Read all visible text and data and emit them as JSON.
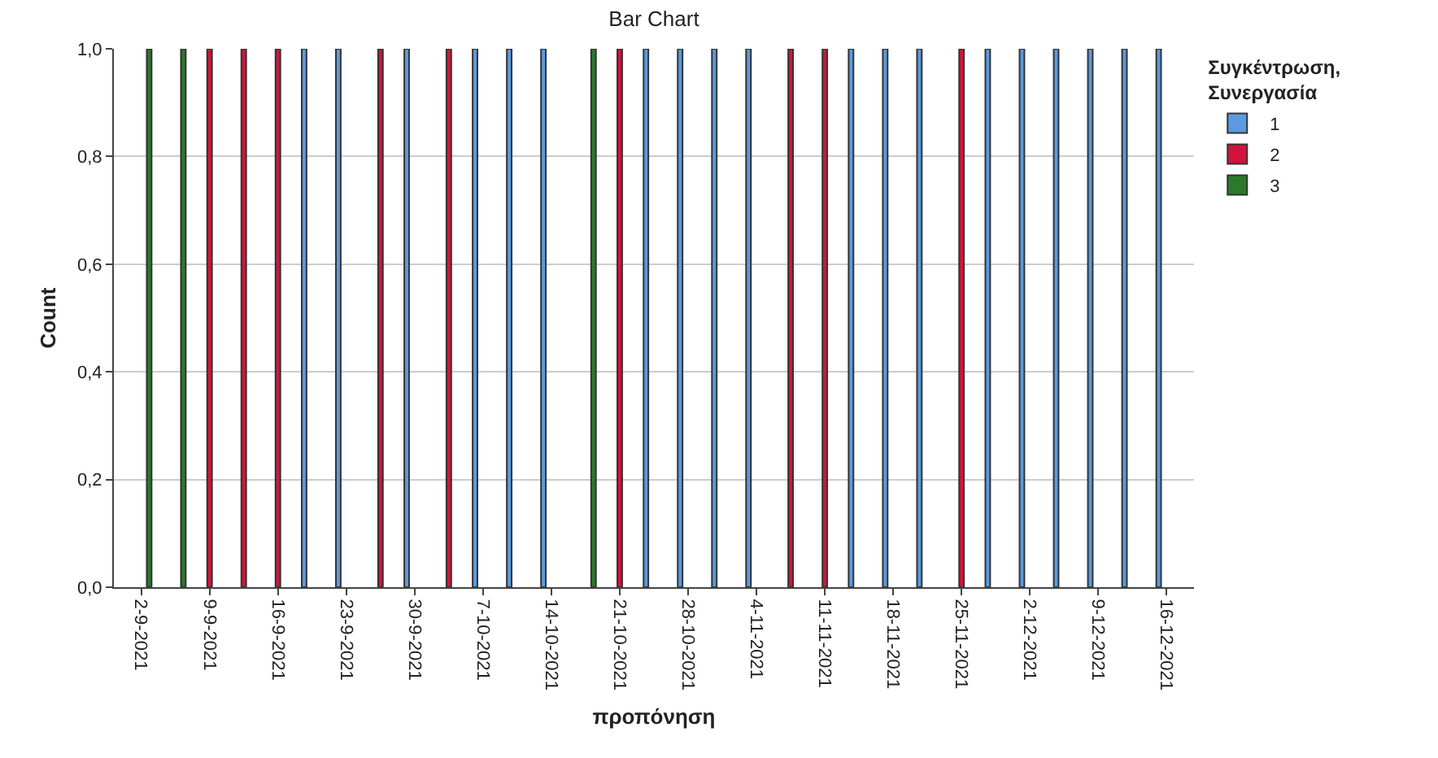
{
  "chart_data": {
    "type": "bar",
    "title": "Bar Chart",
    "xlabel": "προπόνηση",
    "ylabel": "Count",
    "legend_title": "Συγκέντρωση, Συνεργασία",
    "categories": [
      "2-9-2021",
      null,
      "9-9-2021",
      null,
      "16-9-2021",
      null,
      "23-9-2021",
      null,
      "30-9-2021",
      null,
      "7-10-2021",
      null,
      "14-10-2021",
      null,
      "21-10-2021",
      null,
      "28-10-2021",
      null,
      "4-11-2021",
      null,
      "11-11-2021",
      null,
      "18-11-2021",
      null,
      "25-11-2021",
      null,
      "2-12-2021",
      null,
      "9-12-2021",
      null,
      "16-12-2021"
    ],
    "series": [
      {
        "name": "1",
        "color": "#5b9ae0",
        "values": [
          null,
          null,
          null,
          null,
          null,
          1,
          1,
          null,
          1,
          null,
          1,
          1,
          1,
          null,
          null,
          1,
          1,
          1,
          1,
          null,
          null,
          1,
          1,
          1,
          null,
          1,
          1,
          1,
          1,
          1,
          1
        ]
      },
      {
        "name": "2",
        "color": "#d2143c",
        "values": [
          null,
          null,
          1,
          1,
          1,
          null,
          null,
          1,
          null,
          1,
          null,
          null,
          null,
          null,
          1,
          null,
          null,
          null,
          null,
          1,
          1,
          null,
          null,
          null,
          1,
          null,
          null,
          null,
          null,
          null,
          null
        ]
      },
      {
        "name": "3",
        "color": "#2a7a2a",
        "values": [
          1,
          1,
          null,
          null,
          null,
          null,
          null,
          null,
          null,
          null,
          null,
          null,
          null,
          1,
          null,
          null,
          null,
          null,
          null,
          null,
          null,
          null,
          null,
          null,
          null,
          null,
          null,
          null,
          null,
          null,
          null
        ]
      }
    ],
    "ylim": [
      0,
      1
    ],
    "yticks": [
      {
        "value": 0,
        "label": "0,0"
      },
      {
        "value": 0.2,
        "label": "0,2"
      },
      {
        "value": 0.4,
        "label": "0,4"
      },
      {
        "value": 0.6,
        "label": "0,6"
      },
      {
        "value": 0.8,
        "label": "0,8"
      },
      {
        "value": 1,
        "label": "1,0"
      }
    ],
    "grid": "y",
    "legend": "top right"
  }
}
